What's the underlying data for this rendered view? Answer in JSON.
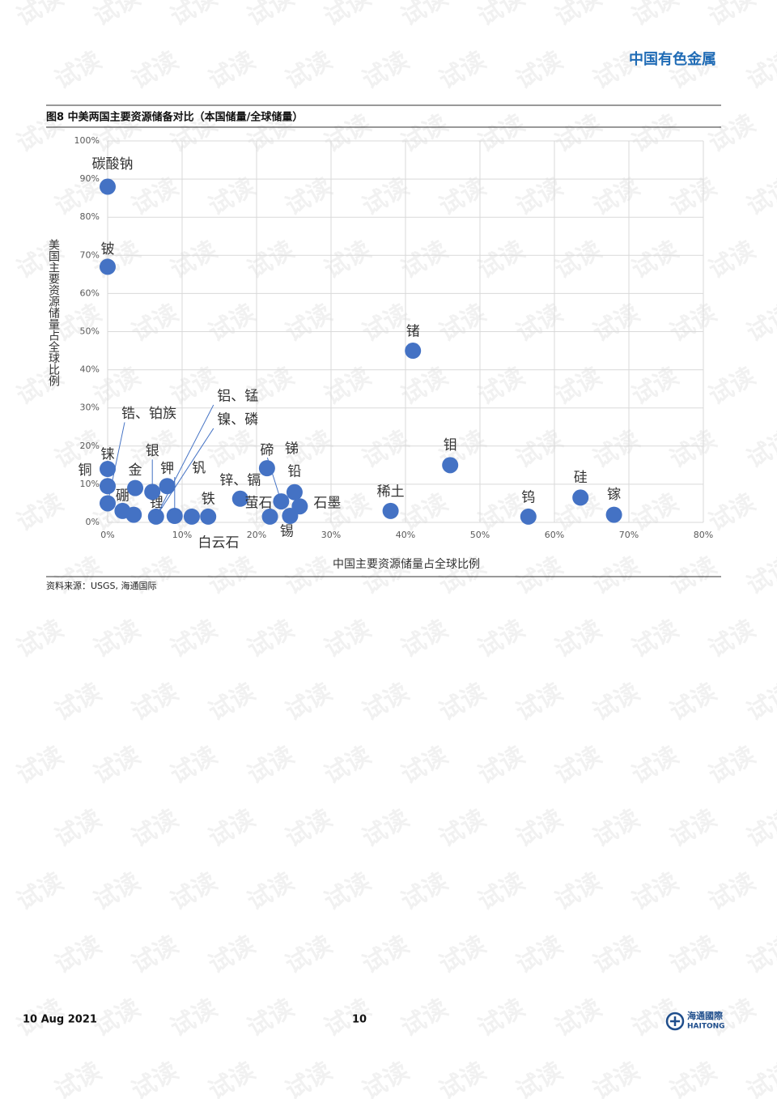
{
  "header": {
    "brand": "中国有色金属"
  },
  "figure_title": "图8  中美两国主要资源储备对比（本国储量/全球储量）",
  "chart_data": {
    "type": "scatter",
    "x_label": "中国主要资源储量占全球比例",
    "y_label": "美国主要资源储量占全球比例",
    "labels": [
      "碳酸钠",
      "铍",
      "锗",
      "钼",
      "硅",
      "镓",
      "钨",
      "稀土",
      "铼",
      "铜",
      "锆、铂族",
      "硼",
      "锂",
      "金",
      "银",
      "钾",
      [
        "铝、锰",
        "镍、磷"
      ],
      "钒",
      "白云石",
      "铁",
      "锌、镉",
      "萤石",
      "碲",
      "锑",
      "铅",
      "锡",
      "石墨"
    ],
    "x": [
      0,
      0,
      41,
      46,
      63.5,
      68,
      56.5,
      38,
      0,
      0,
      0,
      2,
      3.5,
      3.7,
      6,
      8,
      6.5,
      9,
      11.3,
      13.5,
      17.8,
      21.8,
      21.4,
      23.3,
      25.1,
      24.5,
      25.8
    ],
    "values": [
      88,
      67,
      45,
      15,
      6.5,
      2,
      1.5,
      3,
      14,
      9.5,
      5,
      3,
      2,
      9,
      8,
      9.5,
      1.5,
      1.7,
      1.5,
      1.5,
      6.2,
      1.5,
      14.2,
      5.5,
      7.9,
      1.7,
      4.2
    ],
    "color": "#4472c4",
    "xlim": [
      0,
      80
    ],
    "xticks": [
      {
        "value": 0,
        "label": "0%"
      },
      {
        "value": 10,
        "label": "10%"
      },
      {
        "value": 20,
        "label": "20%"
      },
      {
        "value": 30,
        "label": "30%"
      },
      {
        "value": 40,
        "label": "40%"
      },
      {
        "value": 50,
        "label": "50%"
      },
      {
        "value": 60,
        "label": "60%"
      },
      {
        "value": 70,
        "label": "70%"
      },
      {
        "value": 80,
        "label": "80%"
      }
    ],
    "ylim": [
      0,
      100
    ],
    "yticks": [
      {
        "value": 0,
        "label": "0%"
      },
      {
        "value": 10,
        "label": "10%"
      },
      {
        "value": 20,
        "label": "20%"
      },
      {
        "value": 30,
        "label": "30%"
      },
      {
        "value": 40,
        "label": "40%"
      },
      {
        "value": 50,
        "label": "50%"
      },
      {
        "value": 60,
        "label": "60%"
      },
      {
        "value": 70,
        "label": "70%"
      },
      {
        "value": 80,
        "label": "80%"
      },
      {
        "value": 90,
        "label": "90%"
      },
      {
        "value": 100,
        "label": "100%"
      }
    ],
    "grid": true
  },
  "source": "资料来源：USGS, 海通国际",
  "footer": {
    "date": "10 Aug 2021",
    "page": "10",
    "logo_cn": "海通國際",
    "logo_en": "HAITONG"
  },
  "watermark": "试读"
}
